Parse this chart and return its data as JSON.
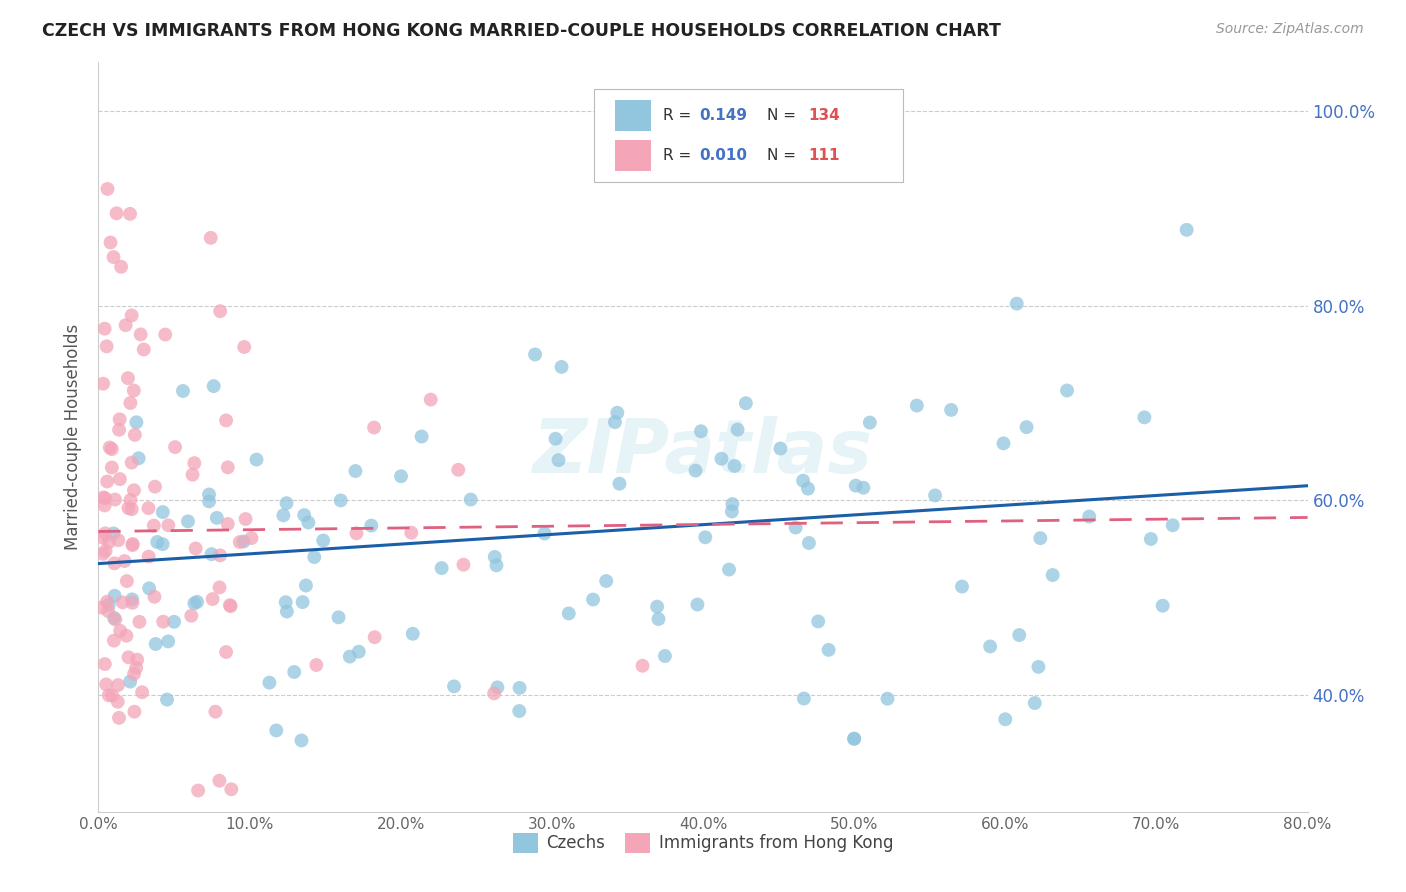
{
  "title": "CZECH VS IMMIGRANTS FROM HONG KONG MARRIED-COUPLE HOUSEHOLDS CORRELATION CHART",
  "source": "Source: ZipAtlas.com",
  "ylabel_label": "Married-couple Households",
  "color_blue": "#92c5de",
  "color_pink": "#f4a5b8",
  "color_line_blue": "#1a5fa8",
  "color_line_pink": "#e06080",
  "watermark": "ZIPatlas",
  "background_color": "#ffffff",
  "grid_color": "#cccccc",
  "r_blue": 0.149,
  "n_blue": 134,
  "r_pink": 0.01,
  "n_pink": 111,
  "blue_intercept": 0.535,
  "blue_slope": 0.1,
  "pink_intercept": 0.565,
  "pink_slope": 0.018
}
